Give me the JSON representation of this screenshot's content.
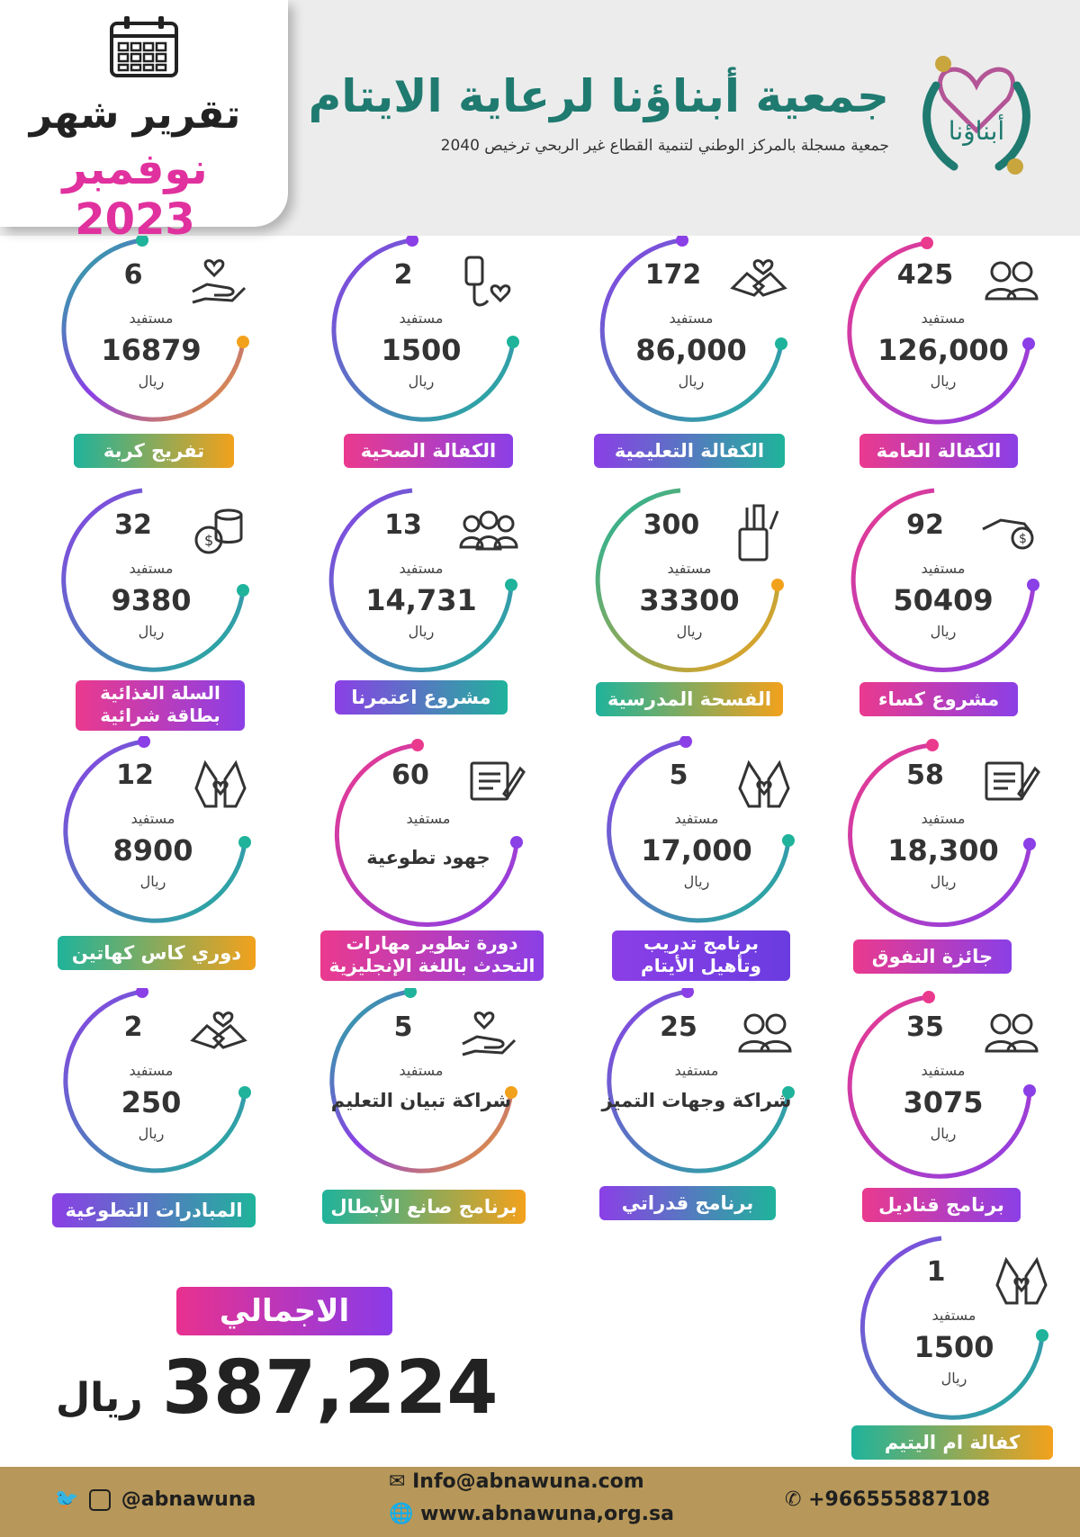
{
  "header": {
    "report_title": "تقرير شهر",
    "report_month": "نوفمبر 2023",
    "org_name": "جمعية أبناؤنا لرعاية الايتام",
    "org_subtitle": "جمعية مسجلة بالمركز الوطني لتنمية القطاع غير الربحي ترخيص 2040",
    "logo_text": "أبناؤنا"
  },
  "labels": {
    "beneficiary": "مستفيد",
    "currency": "ريال"
  },
  "cards": [
    {
      "number": "425",
      "amount": "126,000",
      "title": "الكفالة العامة",
      "icon": "people-icon"
    },
    {
      "number": "172",
      "amount": "86,000",
      "title": "الكفالة التعليمية",
      "icon": "handshake-heart-icon"
    },
    {
      "number": "2",
      "amount": "1500",
      "title": "الكفالة الصحية",
      "icon": "iv-heart-icon"
    },
    {
      "number": "6",
      "amount": "16879",
      "title": "تفريج كربة",
      "icon": "hand-heart-icon"
    },
    {
      "number": "92",
      "amount": "50409",
      "title": "مشروع كساء",
      "icon": "hand-coin-icon"
    },
    {
      "number": "300",
      "amount": "33300",
      "title": "الفسحة المدرسية",
      "icon": "pencil-cup-icon"
    },
    {
      "number": "13",
      "amount": "14,731",
      "title": "مشروع اعتمرنا",
      "icon": "group-icon"
    },
    {
      "number": "32",
      "amount": "9380",
      "title": "السلة الغذائية بطاقة شرائية",
      "icon": "coins-icon"
    },
    {
      "number": "58",
      "amount": "18,300",
      "title": "جائزة التفوق",
      "icon": "certificate-icon"
    },
    {
      "number": "5",
      "amount": "17,000",
      "title": "برنامج تدريب وتأهيل الأيتام",
      "icon": "hands-heart-icon"
    },
    {
      "number": "60",
      "text": "جهود تطوعية",
      "title": "دورة تطوير مهارات التحدث باللغة الإنجليزية",
      "icon": "certificate-icon"
    },
    {
      "number": "12",
      "amount": "8900",
      "title": "دوري كاس كهاتين",
      "icon": "hands-heart-icon"
    },
    {
      "number": "35",
      "amount": "3075",
      "title": "برنامج قناديل",
      "icon": "people-icon"
    },
    {
      "number": "25",
      "text": "شراكة وجهات التميز",
      "title": "برنامج قدراتي",
      "icon": "people-icon"
    },
    {
      "number": "5",
      "text": "شراكة تبيان التعليم",
      "title": "برنامج صانع الأبطال",
      "icon": "hand-heart-icon"
    },
    {
      "number": "2",
      "amount": "250",
      "title": "المبادرات التطوعية",
      "icon": "handshake-heart-icon"
    },
    {
      "number": "1",
      "amount": "1500",
      "title": "كفالة ام اليتيم",
      "icon": "hands-heart-icon"
    }
  ],
  "colors": {
    "label_pink": "#ea3a8e",
    "label_purple": "#8b3fe6",
    "label_teal": "#1fb39b",
    "label_orange": "#f2a11c",
    "label_green": "#38b56a",
    "footer": "#b7985a",
    "header_bg": "#ececec"
  },
  "total": {
    "label": "الاجمالي",
    "amount": "387,224",
    "currency": "ريال"
  },
  "footer": {
    "social": "@abnawuna",
    "email": "Info@abnawuna.com",
    "website": "www.abnawuna,org.sa",
    "phone": "+966555887108"
  }
}
